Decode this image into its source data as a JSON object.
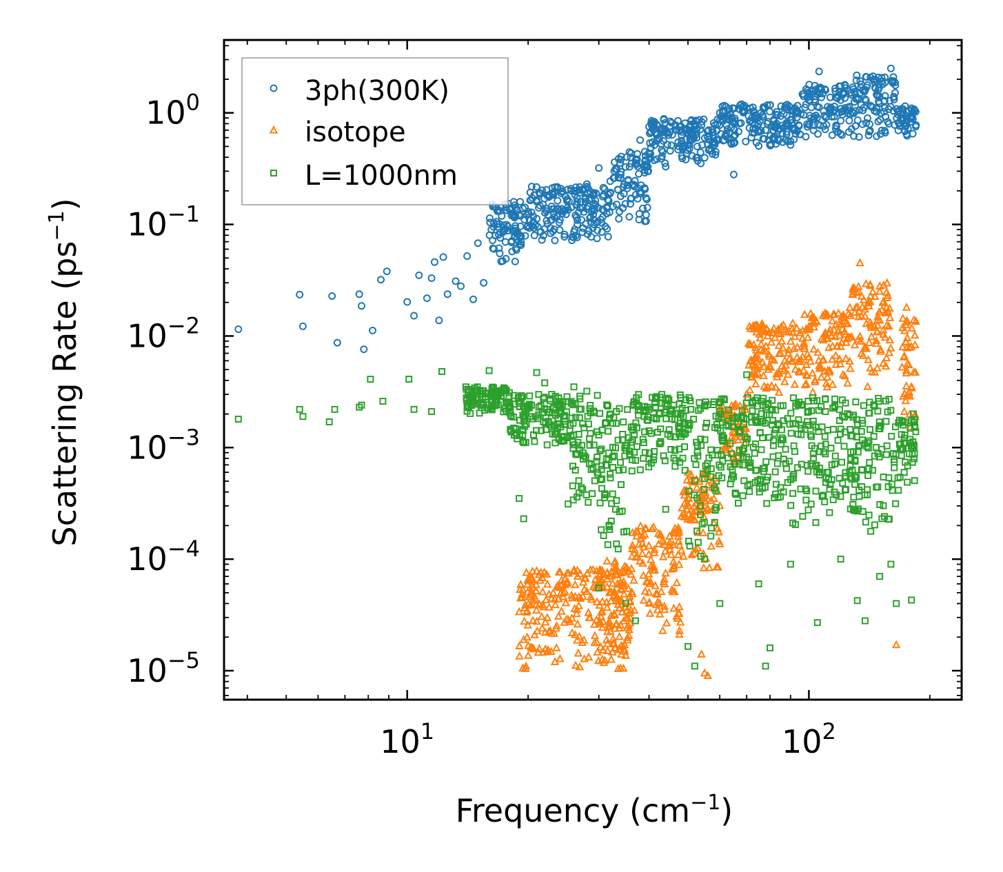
{
  "chart_data": {
    "type": "scatter",
    "xscale": "log",
    "yscale": "log",
    "xlim": [
      3.5,
      240
    ],
    "ylim": [
      5.5e-06,
      4.5
    ],
    "xlabel": {
      "main": "Frequency (cm",
      "sup": "−1",
      "close": ")"
    },
    "ylabel": {
      "main": "Scattering Rate (ps",
      "sup": "−1",
      "close": ")"
    },
    "xticks": [
      {
        "value": 10,
        "base": "10",
        "exp": "1"
      },
      {
        "value": 100,
        "base": "10",
        "exp": "2"
      }
    ],
    "yticks": [
      {
        "value": 1,
        "base": "10",
        "exp": "0"
      },
      {
        "value": 0.1,
        "base": "10",
        "exp": "−1"
      },
      {
        "value": 0.01,
        "base": "10",
        "exp": "−2"
      },
      {
        "value": 0.001,
        "base": "10",
        "exp": "−3"
      },
      {
        "value": 0.0001,
        "base": "10",
        "exp": "−4"
      },
      {
        "value": 1e-05,
        "base": "10",
        "exp": "−5"
      }
    ],
    "legend_position": "upper-left",
    "series": [
      {
        "name": "3ph(300K)",
        "marker": "circle",
        "color": "#1f77b4",
        "points": [
          [
            3.8,
            0.0115
          ],
          [
            5.4,
            0.0235
          ],
          [
            5.5,
            0.0122
          ],
          [
            6.5,
            0.0228
          ],
          [
            6.7,
            0.0087
          ],
          [
            7.6,
            0.0237
          ],
          [
            7.7,
            0.0186
          ],
          [
            7.8,
            0.0076
          ],
          [
            8.2,
            0.0112
          ],
          [
            8.6,
            0.032
          ],
          [
            8.9,
            0.038
          ],
          [
            10,
            0.0202
          ],
          [
            10.4,
            0.0152
          ],
          [
            10.7,
            0.035
          ],
          [
            11.2,
            0.0218
          ],
          [
            11.5,
            0.033
          ],
          [
            11.7,
            0.046
          ],
          [
            12.0,
            0.0138
          ],
          [
            12.3,
            0.051
          ],
          [
            12.6,
            0.0237
          ],
          [
            13.2,
            0.031
          ],
          [
            13.6,
            0.028
          ],
          [
            14.1,
            0.052
          ],
          [
            14.6,
            0.0213
          ],
          [
            15,
            0.068
          ],
          [
            15.5,
            0.03
          ],
          [
            16.2,
            0.09
          ],
          [
            17,
            0.055
          ],
          [
            17.8,
            0.088
          ],
          [
            18.5,
            0.115
          ],
          [
            19.2,
            0.07
          ],
          [
            20,
            0.13
          ],
          [
            21,
            0.16
          ],
          [
            22.5,
            0.18
          ],
          [
            24,
            0.11
          ],
          [
            26,
            0.2
          ],
          [
            28,
            0.23
          ],
          [
            30,
            0.32
          ],
          [
            32,
            0.19
          ],
          [
            34,
            0.26
          ],
          [
            36,
            0.17
          ],
          [
            38,
            0.57
          ],
          [
            40,
            0.75
          ],
          [
            42,
            0.59
          ],
          [
            44,
            0.33
          ],
          [
            48,
            0.7
          ],
          [
            52,
            0.78
          ],
          [
            56,
            0.52
          ],
          [
            60,
            1.0
          ],
          [
            65,
            0.28
          ],
          [
            70,
            1.1
          ],
          [
            78,
            0.7
          ],
          [
            88,
            0.95
          ],
          [
            100,
            1.3
          ],
          [
            106,
            2.35
          ],
          [
            110,
            1.6
          ],
          [
            120,
            0.85
          ],
          [
            135,
            1.8
          ],
          [
            150,
            1.4
          ],
          [
            160,
            2.5
          ],
          [
            172,
            0.8
          ],
          [
            180,
            1.1
          ]
        ],
        "bands": [
          [
            16,
            20,
            0.045,
            0.16
          ],
          [
            20,
            32,
            0.07,
            0.22
          ],
          [
            32,
            40,
            0.1,
            0.45
          ],
          [
            40,
            60,
            0.35,
            0.9
          ],
          [
            60,
            95,
            0.5,
            1.2
          ],
          [
            95,
            130,
            0.6,
            1.8
          ],
          [
            130,
            165,
            0.6,
            2.2
          ],
          [
            165,
            185,
            0.6,
            1.15
          ]
        ]
      },
      {
        "name": "isotope",
        "marker": "triangle",
        "color": "#ff7f0e",
        "points": [
          [
            19.4,
            1.05e-05
          ],
          [
            20.5,
            1.6e-05
          ],
          [
            25,
            6e-05
          ],
          [
            29,
            8e-05
          ],
          [
            32,
            2.5e-05
          ],
          [
            34,
            1.05e-05
          ],
          [
            36,
            3.5e-05
          ],
          [
            40,
            4e-05
          ],
          [
            45,
            0.00016
          ],
          [
            50,
            0.0003
          ],
          [
            54,
            1.4e-05
          ],
          [
            55,
            9.5e-06
          ],
          [
            56,
            9e-06
          ],
          [
            60,
            0.0003
          ],
          [
            70,
            0.003
          ],
          [
            75,
            0.0055
          ],
          [
            85,
            0.007
          ],
          [
            100,
            0.012
          ],
          [
            110,
            0.015
          ],
          [
            120,
            0.008
          ],
          [
            134,
            0.045
          ],
          [
            140,
            0.0035
          ],
          [
            150,
            0.025
          ],
          [
            165,
            1.7e-05
          ],
          [
            175,
            0.018
          ],
          [
            180,
            0.008
          ]
        ],
        "bands": [
          [
            19,
            35,
            1e-05,
            8e-05
          ],
          [
            30,
            36,
            1e-05,
            0.0001
          ],
          [
            36,
            48,
            2e-05,
            0.0002
          ],
          [
            48,
            60,
            8e-05,
            0.0006
          ],
          [
            60,
            70,
            0.0007,
            0.0025
          ],
          [
            70,
            95,
            0.003,
            0.013
          ],
          [
            95,
            125,
            0.003,
            0.016
          ],
          [
            125,
            160,
            0.004,
            0.03
          ],
          [
            170,
            185,
            0.0015,
            0.015
          ]
        ]
      },
      {
        "name": "L=1000nm",
        "marker": "square",
        "color": "#2ca02c",
        "points": [
          [
            3.8,
            0.0018
          ],
          [
            5.4,
            0.0022
          ],
          [
            5.5,
            0.0019
          ],
          [
            6.4,
            0.0017
          ],
          [
            6.6,
            0.0022
          ],
          [
            7.6,
            0.0023
          ],
          [
            7.7,
            0.0024
          ],
          [
            8.1,
            0.0041
          ],
          [
            8.7,
            0.0026
          ],
          [
            10.1,
            0.0041
          ],
          [
            10.4,
            0.0022
          ],
          [
            11.5,
            0.0021
          ],
          [
            12.2,
            0.0048
          ],
          [
            14,
            0.0035
          ],
          [
            16,
            0.0049
          ],
          [
            18,
            0.0025
          ],
          [
            19,
            0.00035
          ],
          [
            19.5,
            0.00023
          ],
          [
            21,
            0.0047
          ],
          [
            22,
            0.0038
          ],
          [
            26,
            0.0035
          ],
          [
            28,
            0.0032
          ],
          [
            30,
            5.5e-05
          ],
          [
            33,
            0.00028
          ],
          [
            35,
            4e-05
          ],
          [
            37,
            2.8e-05
          ],
          [
            40,
            0.0022
          ],
          [
            44,
            0.00028
          ],
          [
            50,
            1.65e-05
          ],
          [
            52,
            1.1e-05
          ],
          [
            55,
            0.0001
          ],
          [
            60,
            4e-05
          ],
          [
            70,
            0.0045
          ],
          [
            75,
            6e-05
          ],
          [
            78,
            1.1e-05
          ],
          [
            80,
            1.6e-05
          ],
          [
            90,
            9e-05
          ],
          [
            105,
            2.7e-05
          ],
          [
            120,
            0.0001
          ],
          [
            132,
            4.25e-05
          ],
          [
            138,
            2.8e-05
          ],
          [
            150,
            7e-05
          ],
          [
            160,
            9e-05
          ],
          [
            165,
            4e-05
          ],
          [
            180,
            4.3e-05
          ],
          [
            182,
            0.002
          ]
        ],
        "bands": [
          [
            14,
            18,
            0.002,
            0.0035
          ],
          [
            18,
            25,
            0.001,
            0.003
          ],
          [
            25,
            30,
            0.0003,
            0.003
          ],
          [
            30,
            36,
            0.0001,
            0.0025
          ],
          [
            36,
            50,
            0.0006,
            0.003
          ],
          [
            50,
            60,
            0.0001,
            0.0028
          ],
          [
            60,
            90,
            0.0003,
            0.0028
          ],
          [
            90,
            130,
            0.0002,
            0.0028
          ],
          [
            130,
            165,
            0.00015,
            0.0028
          ],
          [
            165,
            185,
            0.0004,
            0.0018
          ]
        ]
      }
    ]
  }
}
